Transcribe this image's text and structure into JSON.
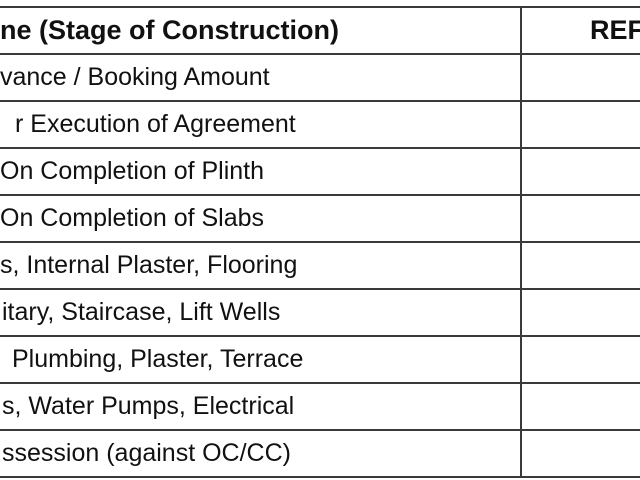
{
  "table": {
    "header": [
      "ne (Stage of Construction)",
      "REF"
    ],
    "rows": [
      "vance / Booking Amount",
      "r Execution of Agreement",
      "On Completion of Plinth",
      "On Completion of Slabs",
      "s, Internal Plaster, Flooring",
      "itary, Staircase, Lift Wells",
      "Plumbing, Plaster, Terrace",
      "s, Water Pumps, Electrical",
      "ssession (against OC/CC)"
    ]
  }
}
